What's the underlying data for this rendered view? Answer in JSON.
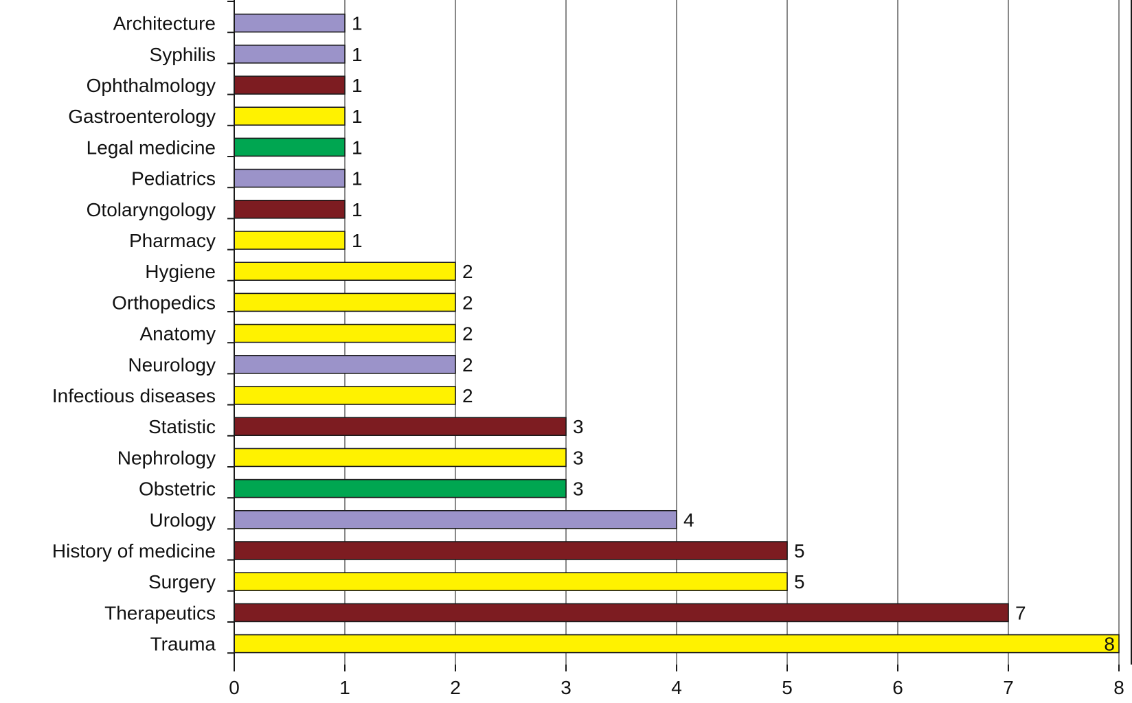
{
  "chart_data": {
    "type": "bar",
    "orientation": "horizontal",
    "categories": [
      "Architecture",
      "Syphilis",
      "Ophthalmology",
      "Gastroenterology",
      "Legal medicine",
      "Pediatrics",
      "Otolaryngology",
      "Pharmacy",
      "Hygiene",
      "Orthopedics",
      "Anatomy",
      "Neurology",
      "Infectious diseases",
      "Statistic",
      "Nephrology",
      "Obstetric",
      "Urology",
      "History of medicine",
      "Surgery",
      "Therapeutics",
      "Trauma"
    ],
    "values": [
      1,
      1,
      1,
      1,
      1,
      1,
      1,
      1,
      2,
      2,
      2,
      2,
      2,
      3,
      3,
      3,
      4,
      5,
      5,
      7,
      8
    ],
    "bar_colors": [
      "#9b93c9",
      "#9b93c9",
      "#7d1c21",
      "#fff200",
      "#00a651",
      "#9b93c9",
      "#7d1c21",
      "#fff200",
      "#fff200",
      "#fff200",
      "#fff200",
      "#9b93c9",
      "#fff200",
      "#7d1c21",
      "#fff200",
      "#00a651",
      "#9b93c9",
      "#7d1c21",
      "#fff200",
      "#7d1c21",
      "#fff200"
    ],
    "xlim": [
      0,
      8
    ],
    "xticks": [
      0,
      1,
      2,
      3,
      4,
      5,
      6,
      7,
      8
    ],
    "grid": true,
    "title": "",
    "xlabel": "",
    "ylabel": ""
  }
}
